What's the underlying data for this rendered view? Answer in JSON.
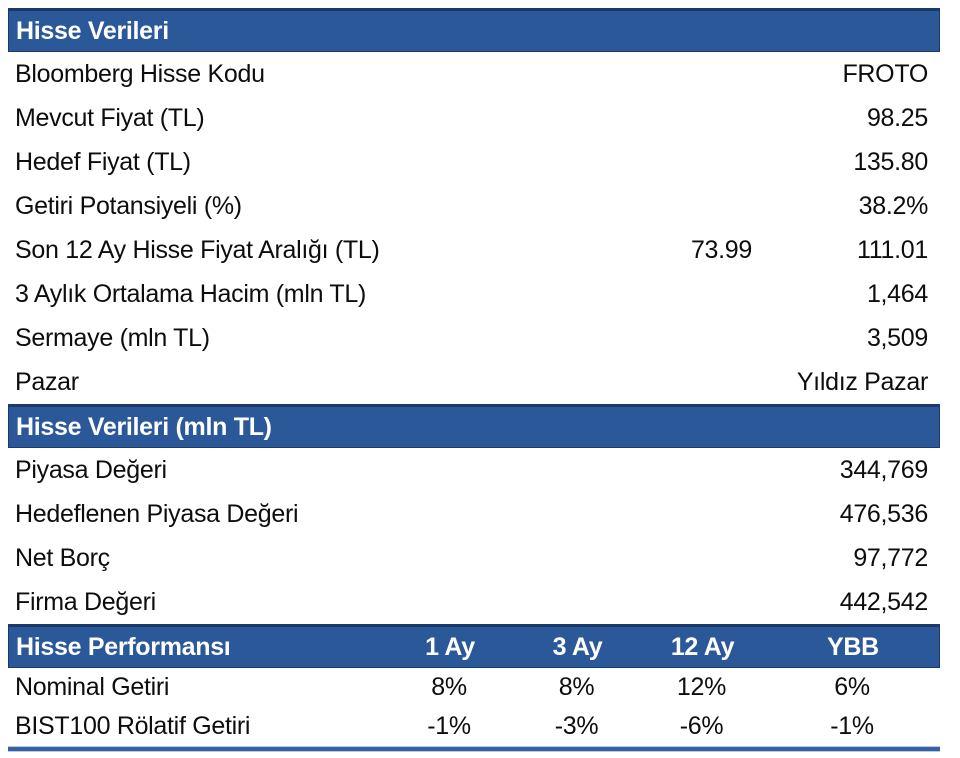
{
  "colors": {
    "header_bg": "#2B5899",
    "header_border": "#1B3A69",
    "header_text": "#FFFFFF",
    "body_text": "#0D0D0D",
    "bottom_rule": "#35629F"
  },
  "section1": {
    "title": "Hisse Verileri",
    "rows": [
      {
        "label": "Bloomberg Hisse Kodu",
        "value": "FROTO"
      },
      {
        "label": "Mevcut Fiyat (TL)",
        "value": "98.25"
      },
      {
        "label": "Hedef Fiyat (TL)",
        "value": "135.80"
      },
      {
        "label": "Getiri Potansiyeli (%)",
        "value": "38.2%"
      },
      {
        "label": "Son 12 Ay Hisse Fiyat Aralığı (TL)",
        "value_low": "73.99",
        "value": "111.01"
      },
      {
        "label": "3 Aylık Ortalama Hacim (mln TL)",
        "value": "1,464"
      },
      {
        "label": "Sermaye (mln TL)",
        "value": "3,509"
      },
      {
        "label": "Pazar",
        "value": "Yıldız Pazar"
      }
    ]
  },
  "section2": {
    "title": "Hisse Verileri (mln TL)",
    "rows": [
      {
        "label": "Piyasa Değeri",
        "value": "344,769"
      },
      {
        "label": "Hedeflenen Piyasa Değeri",
        "value": "476,536"
      },
      {
        "label": "Net Borç",
        "value": "97,772"
      },
      {
        "label": "Firma Değeri",
        "value": "442,542"
      }
    ]
  },
  "section3": {
    "title": "Hisse Performansı",
    "columns": [
      "1 Ay",
      "3 Ay",
      "12 Ay",
      "YBB"
    ],
    "rows": [
      {
        "label": "Nominal Getiri",
        "values": [
          "8%",
          "8%",
          "12%",
          "6%"
        ]
      },
      {
        "label": "BIST100 Rölatif Getiri",
        "values": [
          "-1%",
          "-3%",
          "-6%",
          "-1%"
        ]
      }
    ]
  }
}
